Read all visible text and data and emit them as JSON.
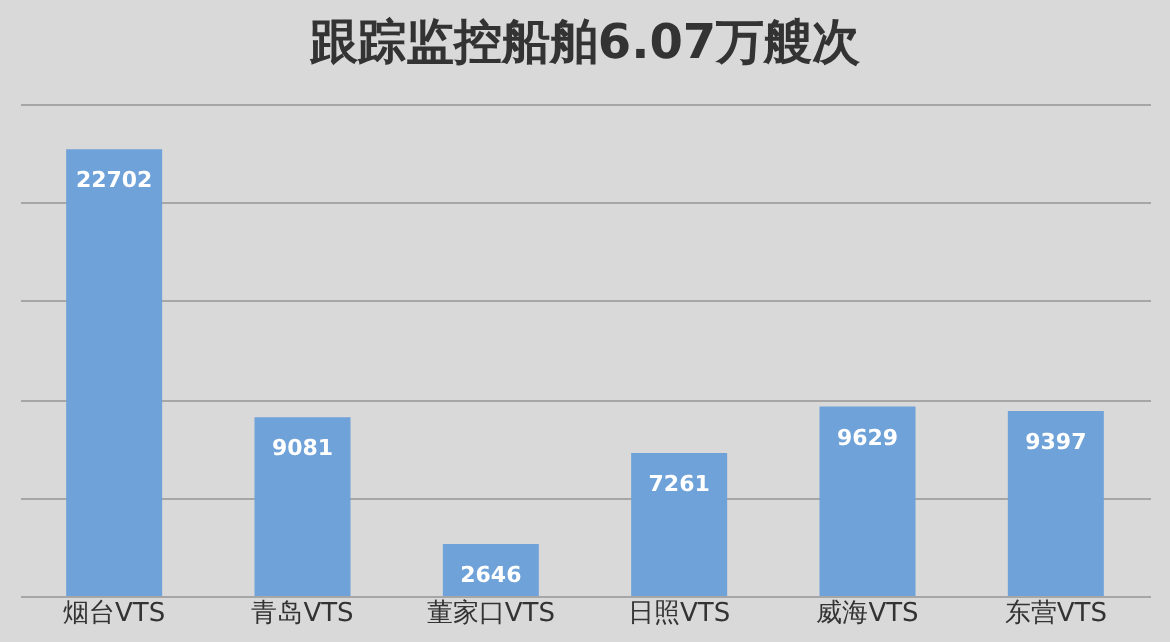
{
  "chart_data": {
    "type": "bar",
    "title": "跟踪监控船舶6.07万艘次",
    "categories": [
      "烟台VTS",
      "青岛VTS",
      "董家口VTS",
      "日照VTS",
      "威海VTS",
      "东营VTS"
    ],
    "values": [
      22702,
      9081,
      2646,
      7261,
      9629,
      9397
    ],
    "color": "#6fa2d8",
    "ylim": [
      0,
      25000
    ],
    "yticks": [
      {
        "value": 0,
        "label": null
      },
      {
        "value": 5000,
        "label": null
      },
      {
        "value": 10000,
        "label": null
      },
      {
        "value": 15000,
        "label": null
      },
      {
        "value": 20000,
        "label": null
      },
      {
        "value": 25000,
        "label": null
      }
    ],
    "grid": "y",
    "tick_labels": "x",
    "data_labels": true
  }
}
